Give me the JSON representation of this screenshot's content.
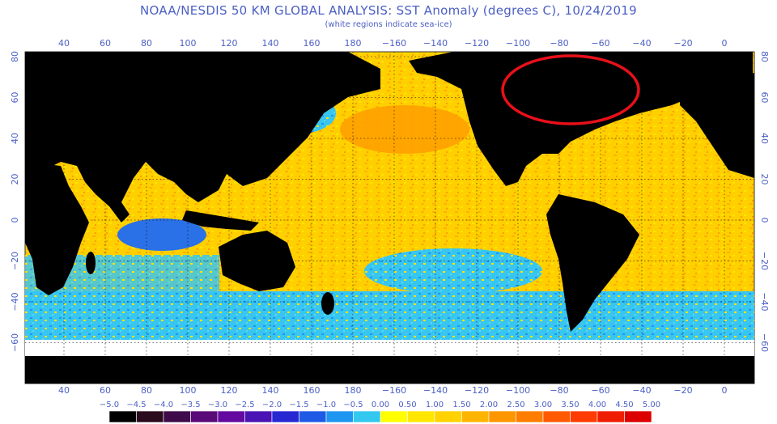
{
  "header": {
    "title": "NOAA/NESDIS 50 KM GLOBAL ANALYSIS: SST Anomaly (degrees C), 10/24/2019",
    "subtitle": "(white regions indicate sea-ice)"
  },
  "map": {
    "lon_ticks": [
      "40",
      "60",
      "80",
      "100",
      "120",
      "140",
      "160",
      "180",
      "−160",
      "−140",
      "−120",
      "−100",
      "−80",
      "−60",
      "−40",
      "−20",
      "0"
    ],
    "lat_ticks": [
      "80",
      "60",
      "40",
      "20",
      "0",
      "−20",
      "−40",
      "−60"
    ],
    "lon_values": [
      40,
      60,
      80,
      100,
      120,
      140,
      160,
      180,
      -160,
      -140,
      -120,
      -100,
      -80,
      -60,
      -40,
      -20,
      0
    ],
    "lat_values": [
      80,
      60,
      40,
      20,
      0,
      -20,
      -40,
      -60
    ],
    "annotation": "red circle highlighting warm anomaly in the Northwest Atlantic / Labrador Sea"
  },
  "colorbar": {
    "labels": [
      "−5.0",
      "−4.5",
      "−4.0",
      "−3.5",
      "−3.0",
      "−2.5",
      "−2.0",
      "−1.5",
      "−1.0",
      "−0.5",
      "0.00",
      "0.50",
      "1.00",
      "1.50",
      "2.00",
      "2.50",
      "3.00",
      "3.50",
      "4.00",
      "4.50",
      "5.00"
    ],
    "colors": [
      "#000000",
      "#2a0a1c",
      "#3e0a4a",
      "#5a0a78",
      "#640aa0",
      "#4a14b4",
      "#2828d2",
      "#1e5ae6",
      "#1e96f0",
      "#32c8f0",
      "#ffff00",
      "#ffe600",
      "#ffd200",
      "#ffb400",
      "#ff9600",
      "#ff7d00",
      "#ff5a00",
      "#ff3c00",
      "#f01e00",
      "#dc0000"
    ]
  },
  "colors": {
    "text": "#4b5fc4",
    "land": "#000000",
    "ice": "#ffffff",
    "warm": "#ffcc00",
    "cool": "#33c3f0",
    "annotation": "#e8101a"
  }
}
